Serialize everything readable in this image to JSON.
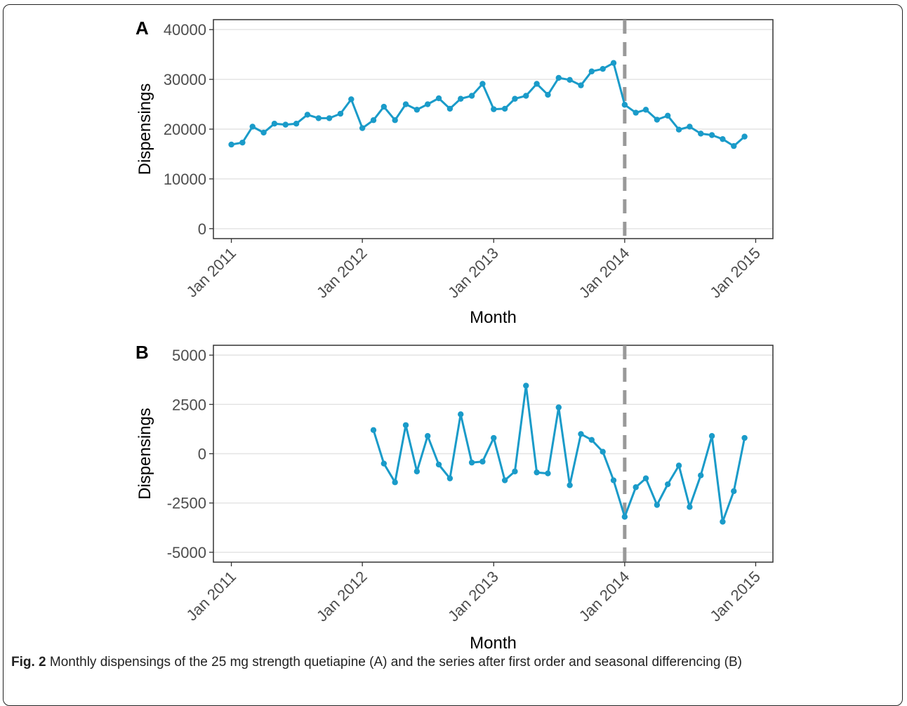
{
  "caption": {
    "label": "Fig. 2",
    "text": "Monthly dispensings of the 25 mg strength quetiapine (A) and the series after first order and seasonal differencing (B)"
  },
  "colors": {
    "series": "#1a9bc9",
    "intervention_line": "#999999",
    "grid": "#e4e4e4",
    "panel_border": "#333333"
  },
  "chart_data": [
    {
      "type": "line",
      "panel_label": "A",
      "xlabel": "Month",
      "ylabel": "Dispensings",
      "ylim": [
        -2000,
        42000
      ],
      "yticks": [
        0,
        10000,
        20000,
        30000,
        40000
      ],
      "xlim": [
        "2010-11-12",
        "2015-02-18"
      ],
      "xticks": [
        "2011-01-01",
        "2012-01-01",
        "2013-01-01",
        "2014-01-01",
        "2015-01-01"
      ],
      "xtick_labels": [
        "Jan 2011",
        "Jan 2012",
        "Jan 2013",
        "Jan 2014",
        "Jan 2015"
      ],
      "grid": "horizontal",
      "intervention_date": "2014-01-01",
      "series": [
        {
          "x": [
            "2011-01",
            "2011-02",
            "2011-03",
            "2011-04",
            "2011-05",
            "2011-06",
            "2011-07",
            "2011-08",
            "2011-09",
            "2011-10",
            "2011-11",
            "2011-12",
            "2012-01",
            "2012-02",
            "2012-03",
            "2012-04",
            "2012-05",
            "2012-06",
            "2012-07",
            "2012-08",
            "2012-09",
            "2012-10",
            "2012-11",
            "2012-12",
            "2013-01",
            "2013-02",
            "2013-03",
            "2013-04",
            "2013-05",
            "2013-06",
            "2013-07",
            "2013-08",
            "2013-09",
            "2013-10",
            "2013-11",
            "2013-12",
            "2014-01",
            "2014-02",
            "2014-03",
            "2014-04",
            "2014-05",
            "2014-06",
            "2014-07",
            "2014-08",
            "2014-09",
            "2014-10",
            "2014-11",
            "2014-12"
          ],
          "values": [
            16900,
            17300,
            20500,
            19300,
            21100,
            20900,
            21100,
            22900,
            22200,
            22200,
            23100,
            26000,
            20200,
            21800,
            24500,
            21800,
            25000,
            23900,
            25000,
            26200,
            24100,
            26100,
            26700,
            29100,
            24000,
            24100,
            26100,
            26700,
            29100,
            26900,
            30300,
            29900,
            28800,
            31600,
            32100,
            33300,
            24900,
            23300,
            23900,
            21900,
            22700,
            19900,
            20500,
            19100,
            18800,
            18000,
            16600,
            18500
          ]
        }
      ]
    },
    {
      "type": "line",
      "panel_label": "B",
      "xlabel": "Month",
      "ylabel": "Dispensings",
      "ylim": [
        -5500,
        5500
      ],
      "yticks": [
        -5000,
        -2500,
        0,
        2500,
        5000
      ],
      "xlim": [
        "2010-11-12",
        "2015-02-18"
      ],
      "xticks": [
        "2011-01-01",
        "2012-01-01",
        "2013-01-01",
        "2014-01-01",
        "2015-01-01"
      ],
      "xtick_labels": [
        "Jan 2011",
        "Jan 2012",
        "Jan 2013",
        "Jan 2014",
        "Jan 2015"
      ],
      "grid": "horizontal",
      "intervention_date": "2014-01-01",
      "series": [
        {
          "x": [
            "2012-02",
            "2012-03",
            "2012-04",
            "2012-05",
            "2012-06",
            "2012-07",
            "2012-08",
            "2012-09",
            "2012-10",
            "2012-11",
            "2012-12",
            "2013-01",
            "2013-02",
            "2013-03",
            "2013-04",
            "2013-05",
            "2013-06",
            "2013-07",
            "2013-08",
            "2013-09",
            "2013-10",
            "2013-11",
            "2013-12",
            "2014-01",
            "2014-02",
            "2014-03",
            "2014-04",
            "2014-05",
            "2014-06",
            "2014-07",
            "2014-08",
            "2014-09",
            "2014-10",
            "2014-11",
            "2014-12"
          ],
          "values": [
            1200,
            -500,
            -1450,
            1450,
            -900,
            900,
            -550,
            -1250,
            2000,
            -450,
            -400,
            800,
            -1350,
            -900,
            3450,
            -950,
            -1000,
            2350,
            -1600,
            1000,
            700,
            100,
            -1350,
            -3200,
            -1700,
            -1250,
            -2600,
            -1550,
            -600,
            -2700,
            -1100,
            900,
            -3450,
            -1900,
            800
          ]
        }
      ]
    }
  ]
}
